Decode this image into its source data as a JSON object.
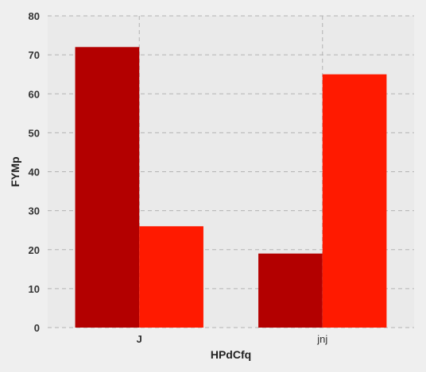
{
  "chart_data": {
    "type": "bar",
    "title": "",
    "xlabel": "HPdCfq",
    "ylabel": "FYMp",
    "categories": [
      "J",
      "jnj"
    ],
    "series": [
      {
        "values": [
          72,
          19
        ],
        "color": "#b30000"
      },
      {
        "values": [
          26,
          65
        ],
        "color": "#ff1a00"
      }
    ],
    "ylim": [
      0,
      80
    ],
    "yticks": [
      0,
      10,
      20,
      30,
      40,
      50,
      60,
      70,
      80
    ],
    "grid": true,
    "background": "#efefef",
    "plot_background": "#eaeaea"
  }
}
